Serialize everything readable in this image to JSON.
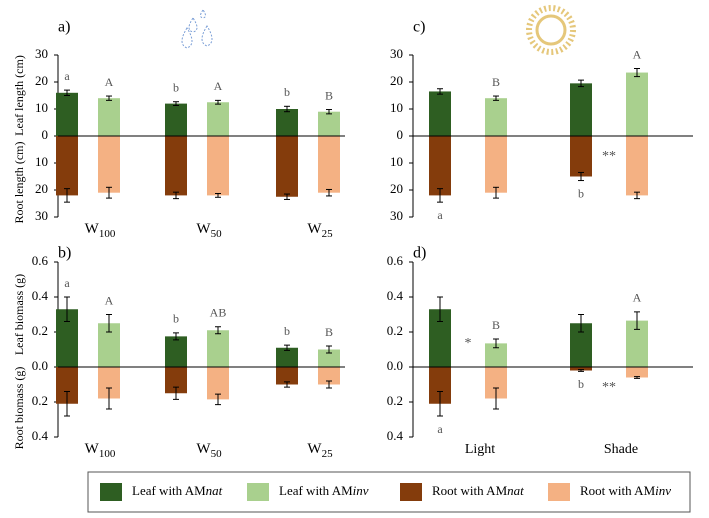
{
  "chart_data": [
    {
      "type": "bar",
      "label": "a)",
      "ylabel_top": "Leaf length (cm)",
      "ylabel_bottom": "Root length (cm)",
      "categories": [
        {
          "text": "W",
          "sub": "100"
        },
        {
          "text": "W",
          "sub": "50"
        },
        {
          "text": "W",
          "sub": "25"
        }
      ],
      "ylim": [
        -30,
        30
      ],
      "yticks": [
        30,
        20,
        10,
        0,
        {
          "value": -10,
          "label": "10"
        },
        {
          "value": -20,
          "label": "20"
        },
        {
          "value": -30,
          "label": "30"
        }
      ],
      "series": [
        {
          "name": [
            "Leaf with AM",
            "nat"
          ],
          "color": "#2e5e22",
          "values": [
            16,
            12,
            10
          ],
          "errors": [
            1,
            0.7,
            1
          ],
          "letters": [
            "a",
            "b",
            "b"
          ]
        },
        {
          "name": [
            "Leaf with AM",
            "inv"
          ],
          "color": "#a9d08e",
          "values": [
            14,
            12.5,
            9
          ],
          "errors": [
            0.8,
            0.7,
            0.8
          ],
          "letters": [
            "A",
            "A",
            "B"
          ]
        },
        {
          "name": [
            "Root with AM",
            "nat"
          ],
          "color": "#843c0c",
          "values": [
            -22,
            -22,
            -22.5
          ],
          "errors": [
            2.5,
            1.2,
            1
          ]
        },
        {
          "name": [
            "Root with AM",
            "inv"
          ],
          "color": "#f4b183",
          "values": [
            -21,
            -22,
            -21
          ],
          "errors": [
            2,
            0.7,
            1.2
          ]
        }
      ]
    },
    {
      "type": "bar",
      "label": "b)",
      "ylabel_top": "Leaf biomass (g)",
      "ylabel_bottom": "Root biomass (g)",
      "categories": [
        {
          "text": "W",
          "sub": "100"
        },
        {
          "text": "W",
          "sub": "50"
        },
        {
          "text": "W",
          "sub": "25"
        }
      ],
      "ylim": [
        -0.4,
        0.6
      ],
      "yticks": [
        0.6,
        0.4,
        0.2,
        {
          "value": 0,
          "label": "0.0"
        },
        {
          "value": -0.2,
          "label": "0.2"
        },
        {
          "value": -0.4,
          "label": "0.4"
        }
      ],
      "series": [
        {
          "color": "#2e5e22",
          "values": [
            0.33,
            0.175,
            0.11
          ],
          "errors": [
            0.07,
            0.02,
            0.015
          ],
          "letters": [
            "a",
            "b",
            "b"
          ]
        },
        {
          "color": "#a9d08e",
          "values": [
            0.25,
            0.21,
            0.1
          ],
          "errors": [
            0.05,
            0.02,
            0.02
          ],
          "letters": [
            "A",
            "AB",
            "B"
          ]
        },
        {
          "color": "#843c0c",
          "values": [
            -0.21,
            -0.15,
            -0.1
          ],
          "errors": [
            0.07,
            0.035,
            0.015
          ]
        },
        {
          "color": "#f4b183",
          "values": [
            -0.18,
            -0.185,
            -0.1
          ],
          "errors": [
            0.06,
            0.03,
            0.02
          ]
        }
      ]
    },
    {
      "type": "bar",
      "label": "c)",
      "categories": [
        null,
        null
      ],
      "ylim": [
        -30,
        30
      ],
      "yticks": [
        30,
        20,
        10,
        0,
        {
          "value": -10,
          "label": "10"
        },
        {
          "value": -20,
          "label": "20"
        },
        {
          "value": -30,
          "label": "30"
        }
      ],
      "series": [
        {
          "color": "#2e5e22",
          "values": [
            16.5,
            19.5
          ],
          "errors": [
            1,
            1.2
          ]
        },
        {
          "color": "#a9d08e",
          "values": [
            14,
            23.5
          ],
          "errors": [
            0.8,
            1.5
          ],
          "letters": [
            "B",
            "A"
          ]
        },
        {
          "color": "#843c0c",
          "values": [
            -22,
            -15
          ],
          "errors": [
            2.5,
            1.5
          ],
          "letters": [
            "a",
            "b"
          ]
        },
        {
          "color": "#f4b183",
          "values": [
            -21,
            -22
          ],
          "errors": [
            2,
            1.2
          ]
        }
      ],
      "root_stars": [
        null,
        "**"
      ]
    },
    {
      "type": "bar",
      "label": "d)",
      "categories": [
        "Light",
        "Shade"
      ],
      "ylim": [
        -0.4,
        0.6
      ],
      "yticks": [
        0.6,
        0.4,
        0.2,
        {
          "value": 0,
          "label": "0.0"
        },
        {
          "value": -0.2,
          "label": "0.2"
        },
        {
          "value": -0.4,
          "label": "0.4"
        }
      ],
      "series": [
        {
          "color": "#2e5e22",
          "values": [
            0.33,
            0.25
          ],
          "errors": [
            0.07,
            0.05
          ]
        },
        {
          "color": "#a9d08e",
          "values": [
            0.135,
            0.265
          ],
          "errors": [
            0.025,
            0.05
          ],
          "letters": [
            "B",
            "A"
          ]
        },
        {
          "color": "#843c0c",
          "values": [
            -0.21,
            -0.02
          ],
          "errors": [
            0.07,
            0.005
          ],
          "letters": [
            "a",
            "b"
          ]
        },
        {
          "color": "#f4b183",
          "values": [
            -0.18,
            -0.06
          ],
          "errors": [
            0.06,
            0.005
          ]
        }
      ],
      "leaf_stars": [
        "*",
        null
      ],
      "root_stars": [
        null,
        "**"
      ]
    }
  ]
}
